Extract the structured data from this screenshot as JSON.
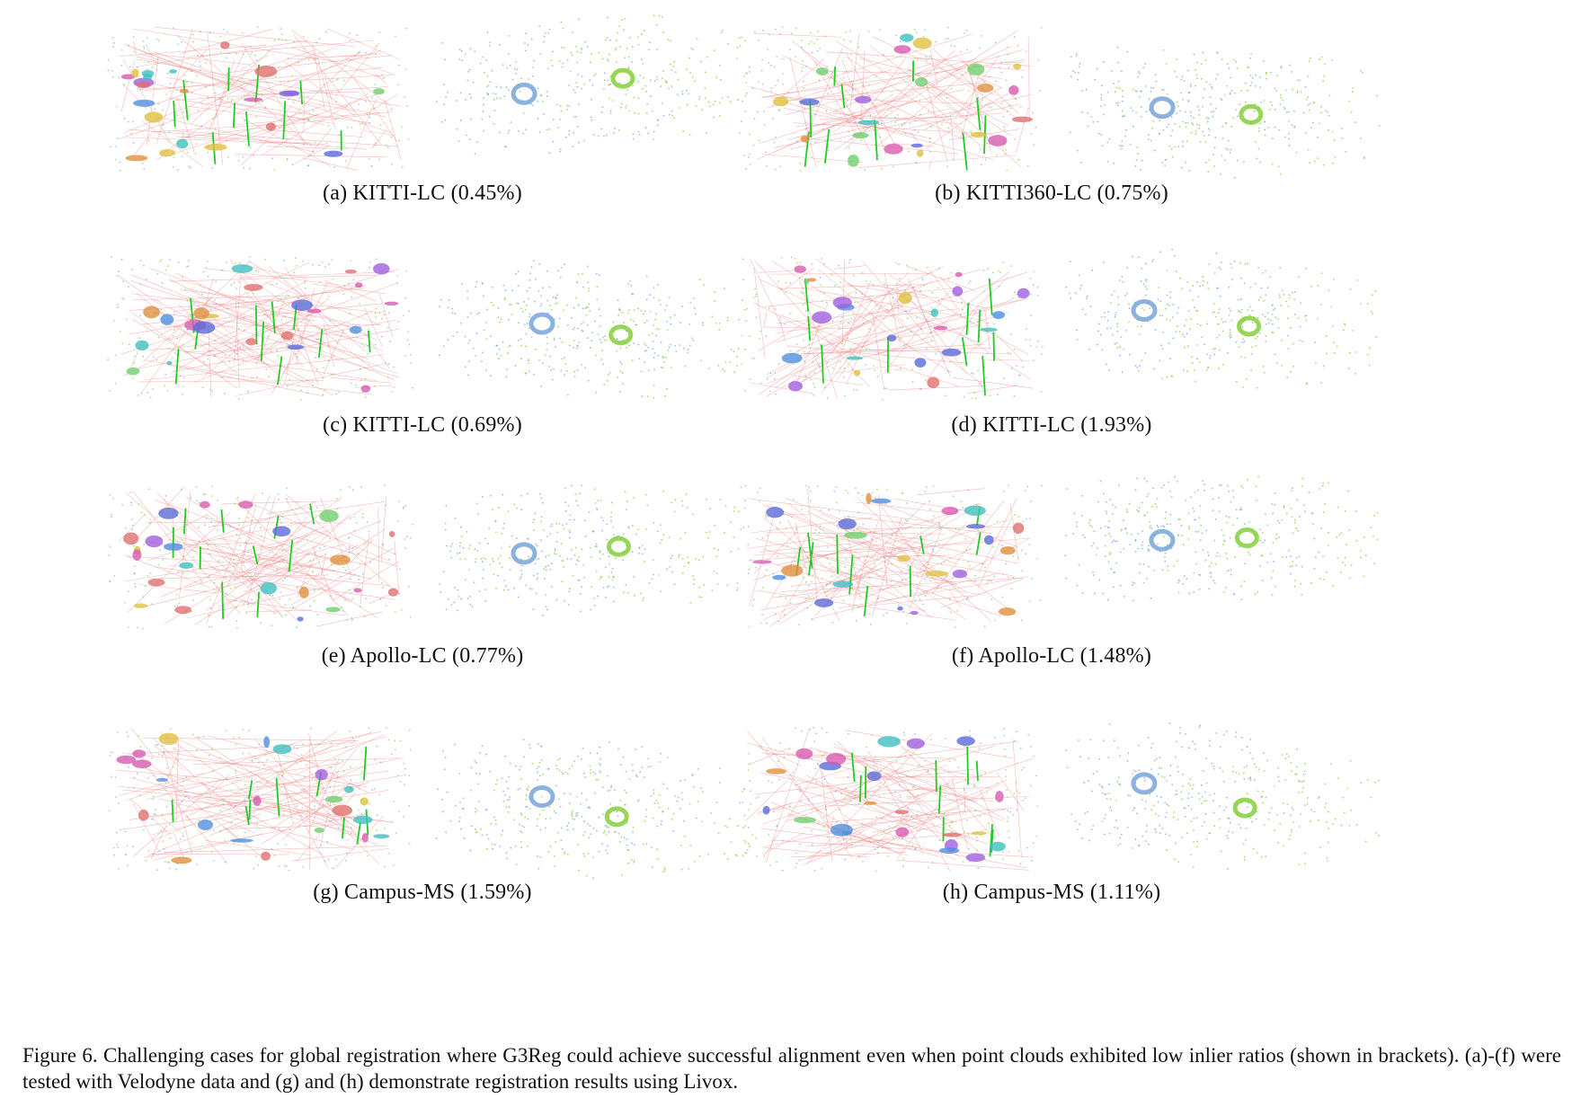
{
  "figure": {
    "panels": [
      {
        "id": "a",
        "label": "(a)  KITTI-LC (0.45%)",
        "left_cloud": "matched",
        "right_cloud": "aligned"
      },
      {
        "id": "b",
        "label": "(b)  KITTI360-LC (0.75%)",
        "left_cloud": "matched",
        "right_cloud": "aligned"
      },
      {
        "id": "c",
        "label": "(c)  KITTI-LC (0.69%)",
        "left_cloud": "matched",
        "right_cloud": "aligned"
      },
      {
        "id": "d",
        "label": "(d)  KITTI-LC (1.93%)",
        "left_cloud": "matched",
        "right_cloud": "aligned"
      },
      {
        "id": "e",
        "label": "(e)  Apollo-LC (0.77%)",
        "left_cloud": "matched",
        "right_cloud": "aligned"
      },
      {
        "id": "f",
        "label": "(f)  Apollo-LC (1.48%)",
        "left_cloud": "matched",
        "right_cloud": "aligned"
      },
      {
        "id": "g",
        "label": "(g)  Campus-MS (1.59%)",
        "left_cloud": "matched",
        "right_cloud": "aligned"
      },
      {
        "id": "h",
        "label": "(h)  Campus-MS (1.11%)",
        "left_cloud": "matched",
        "right_cloud": "aligned"
      }
    ],
    "caption": "Figure 6.  Challenging cases for global registration where G3Reg could achieve successful alignment even when point clouds exhibited low inlier ratios (shown in brackets). (a)-(f) were tested with Velodyne data and (g) and (h) demonstrate registration results using Livox."
  },
  "colors": {
    "source_cloud": "#6f9fd8",
    "target_cloud": "#7ccc2e",
    "outlier_lines": "#f08080",
    "inlier_lines": "#22cc22"
  }
}
